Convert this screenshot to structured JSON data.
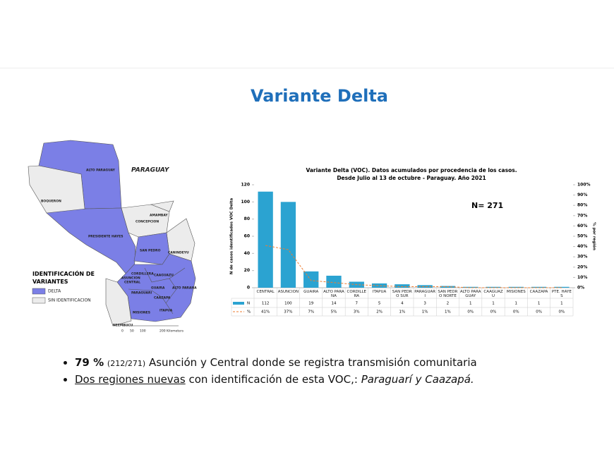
{
  "title": "Variante Delta",
  "map": {
    "title": "PARAGUAY",
    "regions": [
      "ALTO PARAGUAY",
      "BOQUERON",
      "PRESIDENTE HAYES",
      "CONCEPCION",
      "AMAMBAY",
      "SAN PEDRO",
      "CANINDEYU",
      "CORDILLERA",
      "CAAGUAZU",
      "ASUNCION",
      "CENTRAL",
      "GUAIRA",
      "ALTO PARANA",
      "PARAGUARI",
      "CAAZAPA",
      "MISIONES",
      "ITAPUA",
      "NEEMBUCU"
    ],
    "legend_title": "IDENTIFICACIÓN DE VARIANTES",
    "legend": [
      "DELTA",
      "SIN IDENTIFICACION"
    ],
    "scale_labels": [
      "0",
      "50",
      "100",
      "200 Kilometers"
    ]
  },
  "chart_data": {
    "type": "bar",
    "title": "Variante Delta (VOC). Datos acumulados por procedencia de los casos.",
    "subtitle": "Desde Julio al 13 de octubre - Paraguay. Año 2021",
    "annotation": "N= 271",
    "y_label": "N de casos identificados VOC Delta",
    "y2_label": "% por región",
    "categories": [
      "CENTRAL",
      "ASUNCION",
      "GUAIRA",
      "ALTO PARANA",
      "CORDILLERA",
      "ITAPUA",
      "SAN PEDRO SUR",
      "PARAGUARI",
      "SAN PEDRO NORTE",
      "ALTO PARAGUAY",
      "CAAGUAZU",
      "MISIONES",
      "CAAZAPA",
      "PTE. HAYES"
    ],
    "series": [
      {
        "name": "N",
        "color": "#2ba3d1",
        "values": [
          112,
          100,
          19,
          14,
          7,
          5,
          4,
          3,
          2,
          1,
          1,
          1,
          1,
          1
        ]
      },
      {
        "name": "%",
        "color": "#ed7d31",
        "axis": "y2",
        "values": [
          41,
          37,
          7,
          5,
          3,
          2,
          1,
          1,
          1,
          0,
          0,
          0,
          0,
          0
        ],
        "value_labels": [
          "41%",
          "37%",
          "7%",
          "5%",
          "3%",
          "2%",
          "1%",
          "1%",
          "1%",
          "0%",
          "0%",
          "0%",
          "0%",
          "0%"
        ]
      }
    ],
    "ylim": [
      0,
      120
    ],
    "yticks": [
      0,
      20,
      40,
      60,
      80,
      100,
      120
    ],
    "y2lim": [
      0,
      100
    ],
    "y2ticks": [
      {
        "value": 0,
        "label": "0%"
      },
      {
        "value": 10,
        "label": "10%"
      },
      {
        "value": 20,
        "label": "20%"
      },
      {
        "value": 30,
        "label": "30%"
      },
      {
        "value": 40,
        "label": "40%"
      },
      {
        "value": 50,
        "label": "50%"
      },
      {
        "value": 60,
        "label": "60%"
      },
      {
        "value": 70,
        "label": "70%"
      },
      {
        "value": 80,
        "label": "80%"
      },
      {
        "value": 90,
        "label": "90%"
      },
      {
        "value": 100,
        "label": "100%"
      }
    ]
  },
  "bullets": [
    {
      "bold": "79 %",
      "small": "(212/271)",
      "text": "Asunción y Central donde se registra transmisión comunitaria"
    },
    {
      "underlined": "Dos regiones nuevas",
      "text": "con identificación de esta VOC,:",
      "italic": "Paraguarí y Caazapá."
    }
  ]
}
